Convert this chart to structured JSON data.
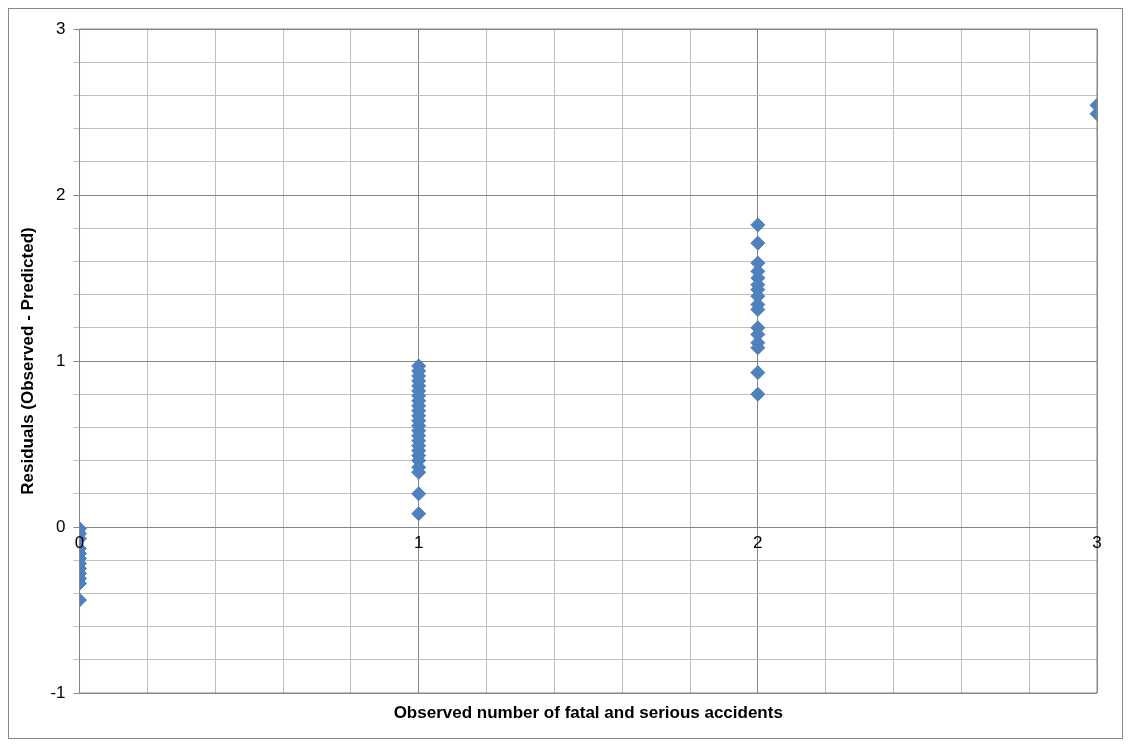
{
  "chart_data": {
    "type": "scatter",
    "xlabel": "Observed number of fatal and serious accidents",
    "ylabel": "Residuals (Observed - Predicted)",
    "marker": "diamond",
    "grid": true,
    "legend": false,
    "xlim": [
      0,
      3
    ],
    "ylim": [
      -1,
      3
    ],
    "xticks": [
      0,
      {
        "value": 0.2,
        "label": null
      },
      {
        "value": 0.4,
        "label": null
      },
      {
        "value": 0.6,
        "label": null
      },
      {
        "value": 0.8,
        "label": null
      },
      1,
      {
        "value": 1.2,
        "label": null
      },
      {
        "value": 1.4,
        "label": null
      },
      {
        "value": 1.6,
        "label": null
      },
      {
        "value": 1.8,
        "label": null
      },
      2,
      {
        "value": 2.2,
        "label": null
      },
      {
        "value": 2.4,
        "label": null
      },
      {
        "value": 2.6,
        "label": null
      },
      {
        "value": 2.8,
        "label": null
      },
      3
    ],
    "yticks": [
      -1,
      {
        "value": -0.8,
        "label": null
      },
      {
        "value": -0.6,
        "label": null
      },
      {
        "value": -0.4,
        "label": null
      },
      {
        "value": -0.2,
        "label": null
      },
      0,
      {
        "value": 0.2,
        "label": null
      },
      {
        "value": 0.4,
        "label": null
      },
      {
        "value": 0.6,
        "label": null
      },
      {
        "value": 0.8,
        "label": null
      },
      1,
      {
        "value": 1.2,
        "label": null
      },
      {
        "value": 1.4,
        "label": null
      },
      {
        "value": 1.6,
        "label": null
      },
      {
        "value": 1.8,
        "label": null
      },
      2,
      {
        "value": 2.2,
        "label": null
      },
      {
        "value": 2.4,
        "label": null
      },
      {
        "value": 2.6,
        "label": null
      },
      {
        "value": 2.8,
        "label": null
      },
      3
    ],
    "series": [
      {
        "color": "#4f81bd",
        "x": [
          0,
          0,
          0,
          0,
          0,
          0,
          0,
          0,
          0,
          0,
          0,
          0,
          1,
          1,
          1,
          1,
          1,
          1,
          1,
          1,
          1,
          1,
          1,
          1,
          1,
          1,
          1,
          1,
          1,
          1,
          1,
          1,
          1,
          1,
          1,
          1,
          2,
          2,
          2,
          2,
          2,
          2,
          2,
          2,
          2,
          2,
          2,
          2,
          2,
          2,
          2,
          2,
          3,
          3
        ],
        "values": [
          -0.01,
          -0.04,
          -0.07,
          -0.13,
          -0.16,
          -0.19,
          -0.22,
          -0.25,
          -0.28,
          -0.31,
          -0.34,
          -0.44,
          0.97,
          0.94,
          0.91,
          0.88,
          0.85,
          0.82,
          0.79,
          0.76,
          0.73,
          0.7,
          0.67,
          0.64,
          0.61,
          0.58,
          0.55,
          0.52,
          0.49,
          0.46,
          0.43,
          0.4,
          0.36,
          0.33,
          0.2,
          0.08,
          1.82,
          1.71,
          1.59,
          1.54,
          1.5,
          1.46,
          1.43,
          1.39,
          1.34,
          1.31,
          1.2,
          1.16,
          1.11,
          1.08,
          0.93,
          0.8,
          2.54,
          2.49
        ]
      }
    ]
  }
}
